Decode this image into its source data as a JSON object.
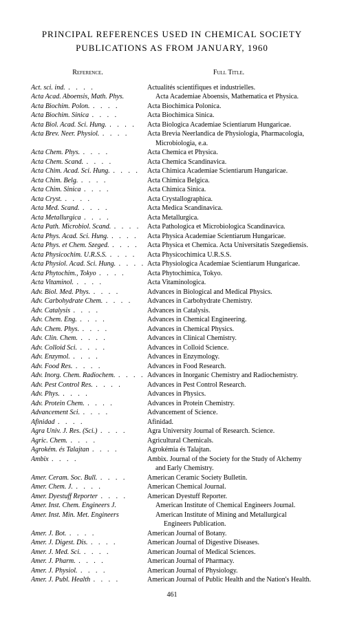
{
  "title_line1": "PRINCIPAL REFERENCES USED IN CHEMICAL SOCIETY",
  "title_line2": "PUBLICATIONS AS FROM JANUARY, 1960",
  "header_reference": "Reference.",
  "header_full_title": "Full Title.",
  "page_number": "461",
  "entries": [
    {
      "ref": "Act. sci. ind.",
      "full": "Actualités scientifiques et industrielles."
    },
    {
      "ref": "Acta Acad. Aboensis, Math. Phys.",
      "full": "Acta Academiae Aboensis, Mathematica et Physica.",
      "wrap": true
    },
    {
      "ref": "Acta Biochim. Polon.",
      "full": "Acta Biochimica Polonica."
    },
    {
      "ref": "Acta Biochim. Sinica",
      "full": "Acta Biochimica Sinica."
    },
    {
      "ref": "Acta Biol. Acad. Sci. Hung.",
      "full": "Acta Biologica Academiae Scientiarum Hungaricae."
    },
    {
      "ref": "Acta Brev. Neer. Physiol.",
      "full": "Acta Brevia Neerlandica de Physiologia, Pharmacologia, Microbiologia, e.a.",
      "fullwrap": true
    },
    {
      "ref": "Acta Chem. Phys.",
      "full": "Acta Chemica et Physica."
    },
    {
      "ref": "Acta Chem. Scand.",
      "full": "Acta Chemica Scandinavica."
    },
    {
      "ref": "Acta Chim. Acad. Sci. Hung.",
      "full": "Acta Chimica Academiae Scientiarum Hungaricae."
    },
    {
      "ref": "Acta Chim. Belg.",
      "full": "Acta Chimica Belgica."
    },
    {
      "ref": "Acta Chim. Sinica",
      "full": "Acta Chimica Sinica."
    },
    {
      "ref": "Acta Cryst.",
      "full": "Acta Crystallographica."
    },
    {
      "ref": "Acta Med. Scand.",
      "full": "Acta Medica Scandinavica."
    },
    {
      "ref": "Acta Metallurgica",
      "full": "Acta Metallurgica."
    },
    {
      "ref": "Acta Path. Microbiol. Scand.",
      "full": "Acta Pathologica et Microbiologica Scandinavica."
    },
    {
      "ref": "Acta Phys. Acad. Sci. Hung.",
      "full": "Acta Physica Academiae Scientiarum Hungaricae."
    },
    {
      "ref": "Acta Phys. et Chem. Szeged.",
      "full": "Acta Physica et Chemica. Acta Universitatis Szegediensis.",
      "fullwrap": true
    },
    {
      "ref": "Acta Physicochim. U.R.S.S.",
      "full": "Acta Physicochimica U.R.S.S."
    },
    {
      "ref": "Acta Physiol. Acad. Sci. Hung.",
      "full": "Acta Physiologica Academiae Scientiarum Hungaricae."
    },
    {
      "ref": "Acta Phytochim., Tokyo",
      "full": "Acta Phytochimica, Tokyo."
    },
    {
      "ref": "Acta Vitaminol.",
      "full": "Acta Vitaminologica."
    },
    {
      "ref": "Adv. Biol. Med. Phys.",
      "full": "Advances in Biological and Medical Physics."
    },
    {
      "ref": "Adv. Carbohydrate Chem.",
      "full": "Advances in Carbohydrate Chemistry."
    },
    {
      "ref": "Adv. Catalysis",
      "full": "Advances in Catalysis."
    },
    {
      "ref": "Adv. Chem. Eng.",
      "full": "Advances in Chemical Engineering."
    },
    {
      "ref": "Adv. Chem. Phys.",
      "full": "Advances in Chemical Physics."
    },
    {
      "ref": "Adv. Clin. Chem.",
      "full": "Advances in Clinical Chemistry."
    },
    {
      "ref": "Adv. Colloid Sci.",
      "full": "Advances in Colloid Science."
    },
    {
      "ref": "Adv. Enzymol.",
      "full": "Advances in Enzymology."
    },
    {
      "ref": "Adv. Food Res.",
      "full": "Advances in Food Research."
    },
    {
      "ref": "Adv. Inorg. Chem. Radiochem.",
      "full": "Advances in Inorganic Chemistry and Radiochemistry."
    },
    {
      "ref": "Adv. Pest Control Res.",
      "full": "Advances in Pest Control Research."
    },
    {
      "ref": "Adv. Phys.",
      "full": "Advances in Physics."
    },
    {
      "ref": "Adv. Protein Chem.",
      "full": "Advances in Protein Chemistry."
    },
    {
      "ref": "Advancement Sci.",
      "full": "Advancement of Science."
    },
    {
      "ref": "Afinidad",
      "full": "Afinidad."
    },
    {
      "ref": "Agra Univ. J. Res. (Sci.)",
      "full": "Agra University Journal of Research.  Science."
    },
    {
      "ref": "Agric. Chem.",
      "full": "Agricultural Chemicals."
    },
    {
      "ref": "Agrokém. és Talajtan",
      "full": "Agrokémia és Talajtan."
    },
    {
      "ref": "Ambix",
      "full": "Ambix. Journal of the Society for the Study of Alchemy and Early Chemistry.",
      "fullwrap": true
    },
    {
      "ref": "Amer. Ceram. Soc. Bull.",
      "full": "American Ceramic Society Bulletin."
    },
    {
      "ref": "Amer. Chem. J.",
      "full": "American Chemical Journal."
    },
    {
      "ref": "Amer. Dyestuff Reporter",
      "full": "American Dyestuff Reporter."
    },
    {
      "ref": "Amer. Inst. Chem. Engineers J.",
      "full": "American Institute of Chemical Engineers Journal.",
      "wrap": true
    },
    {
      "ref": "Amer. Inst. Min. Met. Engineers",
      "full": "American Institute of Mining and Metallurgical Engineers Publication.",
      "wrap": true,
      "fullwrap": true
    },
    {
      "ref": "Amer. J. Bot.",
      "full": "American Journal of Botany."
    },
    {
      "ref": "Amer. J. Digest. Dis.",
      "full": "American Journal of Digestive Diseases."
    },
    {
      "ref": "Amer. J. Med. Sci.",
      "full": "American Journal of Medical Sciences."
    },
    {
      "ref": "Amer. J. Pharm.",
      "full": "American Journal of Pharmacy."
    },
    {
      "ref": "Amer. J. Physiol.",
      "full": "American Journal of Physiology."
    },
    {
      "ref": "Amer. J. Publ. Health",
      "full": "American Journal of Public Health and the Nation's Health.",
      "fullwrap": true
    }
  ]
}
